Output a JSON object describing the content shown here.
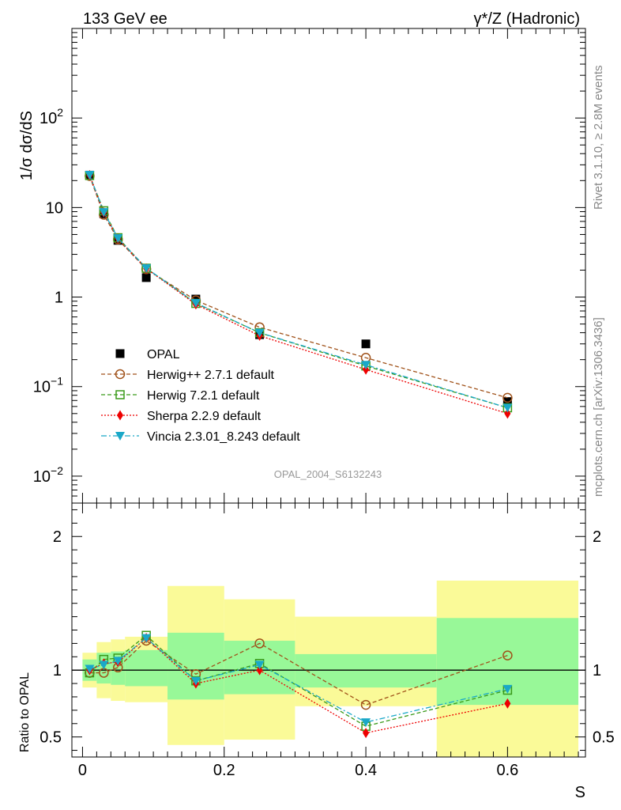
{
  "header": {
    "left": "133 GeV ee",
    "right": "γ*/Z (Hadronic)"
  },
  "side_labels": {
    "rivet": "Rivet 3.1.10, ≥ 2.8M events",
    "mcplots": "mcplots.cern.ch [arXiv:1306.3436]"
  },
  "analysis_tag": "OPAL_2004_S6132243",
  "chart_data": [
    {
      "type": "scatter",
      "panel": "main",
      "ylabel": "1/σ dσ/dS",
      "yscale": "log",
      "ylim": [
        0.005,
        1000
      ],
      "xlim": [
        -0.015,
        0.71
      ],
      "y_ticks": [
        {
          "value": 0.01,
          "label": "10",
          "sup": "−2"
        },
        {
          "value": 0.1,
          "label": "10",
          "sup": "−1"
        },
        {
          "value": 1,
          "label": "1",
          "sup": ""
        },
        {
          "value": 10,
          "label": "10",
          "sup": ""
        },
        {
          "value": 100,
          "label": "10",
          "sup": "2"
        }
      ],
      "legend_position": "lower-left",
      "series": [
        {
          "name": "OPAL",
          "marker": "filled-square",
          "color": "#000000",
          "x": [
            0.01,
            0.03,
            0.05,
            0.09,
            0.16,
            0.25,
            0.4,
            0.6
          ],
          "y": [
            23.0,
            8.5,
            4.3,
            1.65,
            0.95,
            0.38,
            0.3,
            0.068
          ]
        },
        {
          "name": "Herwig++ 2.7.1 default",
          "marker": "open-circle",
          "line": "dashed",
          "color": "#a0521a",
          "x": [
            0.01,
            0.03,
            0.05,
            0.09,
            0.16,
            0.25,
            0.4,
            0.6
          ],
          "y": [
            22.5,
            8.3,
            4.4,
            2.05,
            0.92,
            0.46,
            0.21,
            0.075
          ]
        },
        {
          "name": "Herwig 7.2.1 default",
          "marker": "open-square",
          "line": "dashed",
          "color": "#3a9a1a",
          "x": [
            0.01,
            0.03,
            0.05,
            0.09,
            0.16,
            0.25,
            0.4,
            0.6
          ],
          "y": [
            22.8,
            9.2,
            4.6,
            2.1,
            0.85,
            0.4,
            0.17,
            0.058
          ]
        },
        {
          "name": "Sherpa 2.2.9 default",
          "marker": "filled-diamond",
          "line": "dotted",
          "color": "#ee0000",
          "x": [
            0.01,
            0.03,
            0.05,
            0.09,
            0.16,
            0.25,
            0.4,
            0.6
          ],
          "y": [
            23.0,
            8.8,
            4.5,
            2.08,
            0.83,
            0.37,
            0.155,
            0.05
          ]
        },
        {
          "name": "Vincia 2.3.01_8.243 default",
          "marker": "filled-triangle-down",
          "line": "dashdot",
          "color": "#1aa8c8",
          "x": [
            0.01,
            0.03,
            0.05,
            0.09,
            0.16,
            0.25,
            0.4,
            0.6
          ],
          "y": [
            23.2,
            8.9,
            4.55,
            2.1,
            0.86,
            0.4,
            0.175,
            0.058
          ]
        }
      ]
    },
    {
      "type": "line",
      "panel": "ratio",
      "ylabel": "Ratio to OPAL",
      "xlabel": "S",
      "xlim": [
        -0.015,
        0.71
      ],
      "ylim": [
        0.35,
        2.25
      ],
      "x_ticks": [
        0,
        0.2,
        0.4,
        0.6
      ],
      "x_tick_labels": [
        "0",
        "0.2",
        "0.4",
        "0.6"
      ],
      "y_ticks": [
        0.5,
        1,
        2
      ],
      "y_tick_labels": [
        "0.5",
        "1",
        "2"
      ],
      "reference_line": 1,
      "bands": [
        {
          "xlo": 0.0,
          "xhi": 0.02,
          "inner": [
            0.92,
            1.08
          ],
          "outer": [
            0.87,
            1.13
          ]
        },
        {
          "xlo": 0.02,
          "xhi": 0.04,
          "inner": [
            0.9,
            1.13
          ],
          "outer": [
            0.79,
            1.21
          ]
        },
        {
          "xlo": 0.04,
          "xhi": 0.06,
          "inner": [
            0.89,
            1.14
          ],
          "outer": [
            0.77,
            1.23
          ]
        },
        {
          "xlo": 0.06,
          "xhi": 0.12,
          "inner": [
            0.88,
            1.15
          ],
          "outer": [
            0.76,
            1.25
          ]
        },
        {
          "xlo": 0.12,
          "xhi": 0.2,
          "inner": [
            0.78,
            1.28
          ],
          "outer": [
            0.44,
            1.63
          ]
        },
        {
          "xlo": 0.2,
          "xhi": 0.3,
          "inner": [
            0.82,
            1.22
          ],
          "outer": [
            0.48,
            1.53
          ]
        },
        {
          "xlo": 0.3,
          "xhi": 0.5,
          "inner": [
            0.87,
            1.12
          ],
          "outer": [
            0.73,
            1.4
          ]
        },
        {
          "xlo": 0.5,
          "xhi": 0.7,
          "inner": [
            0.74,
            1.39
          ],
          "outer": [
            0.35,
            1.67
          ]
        }
      ],
      "band_colors": {
        "inner": "#98f898",
        "outer": "#fafa98"
      },
      "series": [
        {
          "name": "Herwig++ 2.7.1 default",
          "marker": "open-circle",
          "line": "dashed",
          "color": "#a0521a",
          "x": [
            0.01,
            0.03,
            0.05,
            0.09,
            0.16,
            0.25,
            0.4,
            0.6
          ],
          "y": [
            0.98,
            0.98,
            1.02,
            1.22,
            0.97,
            1.2,
            0.74,
            1.11
          ]
        },
        {
          "name": "Herwig 7.2.1 default",
          "marker": "open-square",
          "line": "dashed",
          "color": "#3a9a1a",
          "x": [
            0.01,
            0.03,
            0.05,
            0.09,
            0.16,
            0.25,
            0.4,
            0.6
          ],
          "y": [
            0.98,
            1.08,
            1.09,
            1.26,
            0.92,
            1.05,
            0.58,
            0.85
          ]
        },
        {
          "name": "Sherpa 2.2.9 default",
          "marker": "filled-diamond",
          "line": "dotted",
          "color": "#ee0000",
          "x": [
            0.01,
            0.03,
            0.05,
            0.09,
            0.16,
            0.25,
            0.4,
            0.6
          ],
          "y": [
            1.0,
            1.05,
            1.06,
            1.24,
            0.9,
            1.0,
            0.53,
            0.75
          ]
        },
        {
          "name": "Vincia 2.3.01_8.243 default",
          "marker": "filled-triangle-down",
          "line": "dashdot",
          "color": "#1aa8c8",
          "x": [
            0.01,
            0.03,
            0.05,
            0.09,
            0.16,
            0.25,
            0.4,
            0.6
          ],
          "y": [
            1.01,
            1.04,
            1.07,
            1.24,
            0.92,
            1.04,
            0.61,
            0.86
          ]
        }
      ]
    }
  ]
}
